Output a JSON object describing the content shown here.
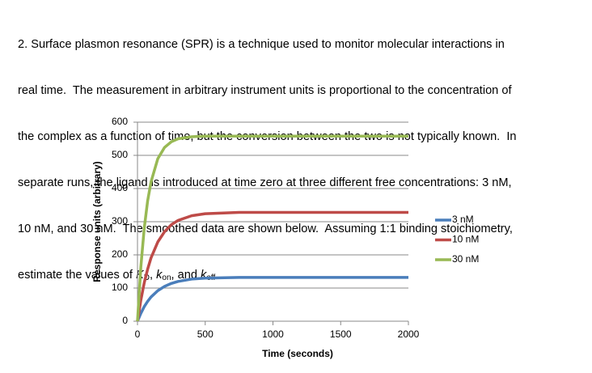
{
  "question": {
    "lines": [
      "2. Surface plasmon resonance (SPR) is a technique used to monitor molecular interactions in",
      "real time.  The measurement in arbitrary instrument units is proportional to the concentration of",
      "the complex as a function of time, but the conversion between the two is not typically known.  In",
      "separate runs, the ligand is introduced at time zero at three different free concentrations: 3 nM,",
      "10 nM, and 30 nM.  The smoothed data are shown below.  Assuming 1:1 binding stoichiometry,"
    ],
    "last_line": [
      "estimate the values of ",
      "K",
      "D",
      ", ",
      "k",
      "on",
      ", and ",
      "k",
      "off",
      "."
    ]
  },
  "chart_data": {
    "type": "line",
    "x_label": "Time (seconds)",
    "y_label": "Response units (arbitrary)",
    "x": [
      0,
      25,
      50,
      75,
      100,
      150,
      200,
      250,
      300,
      400,
      500,
      750,
      1000,
      1500,
      2000
    ],
    "series": [
      {
        "name": "3 nM",
        "color": "#4a7ebb",
        "values": [
          0,
          24,
          44,
          60,
          73,
          92,
          105,
          114,
          120,
          127,
          130,
          132,
          132,
          132,
          132
        ]
      },
      {
        "name": "10 nM",
        "color": "#be4b48",
        "values": [
          0,
          64,
          116,
          157,
          191,
          239,
          270,
          291,
          304,
          318,
          324,
          328,
          328,
          328,
          328
        ]
      },
      {
        "name": "30 nM",
        "color": "#98b954",
        "values": [
          0,
          165,
          281,
          363,
          420,
          490,
          524,
          541,
          550,
          556,
          558,
          558,
          558,
          558,
          558
        ]
      }
    ],
    "xlim": [
      0,
      2000
    ],
    "xticks": [
      0,
      500,
      1000,
      1500,
      2000
    ],
    "ylim": [
      0,
      600
    ],
    "yticks": [
      0,
      100,
      200,
      300,
      400,
      500,
      600
    ],
    "grid": true,
    "legend": "right"
  }
}
